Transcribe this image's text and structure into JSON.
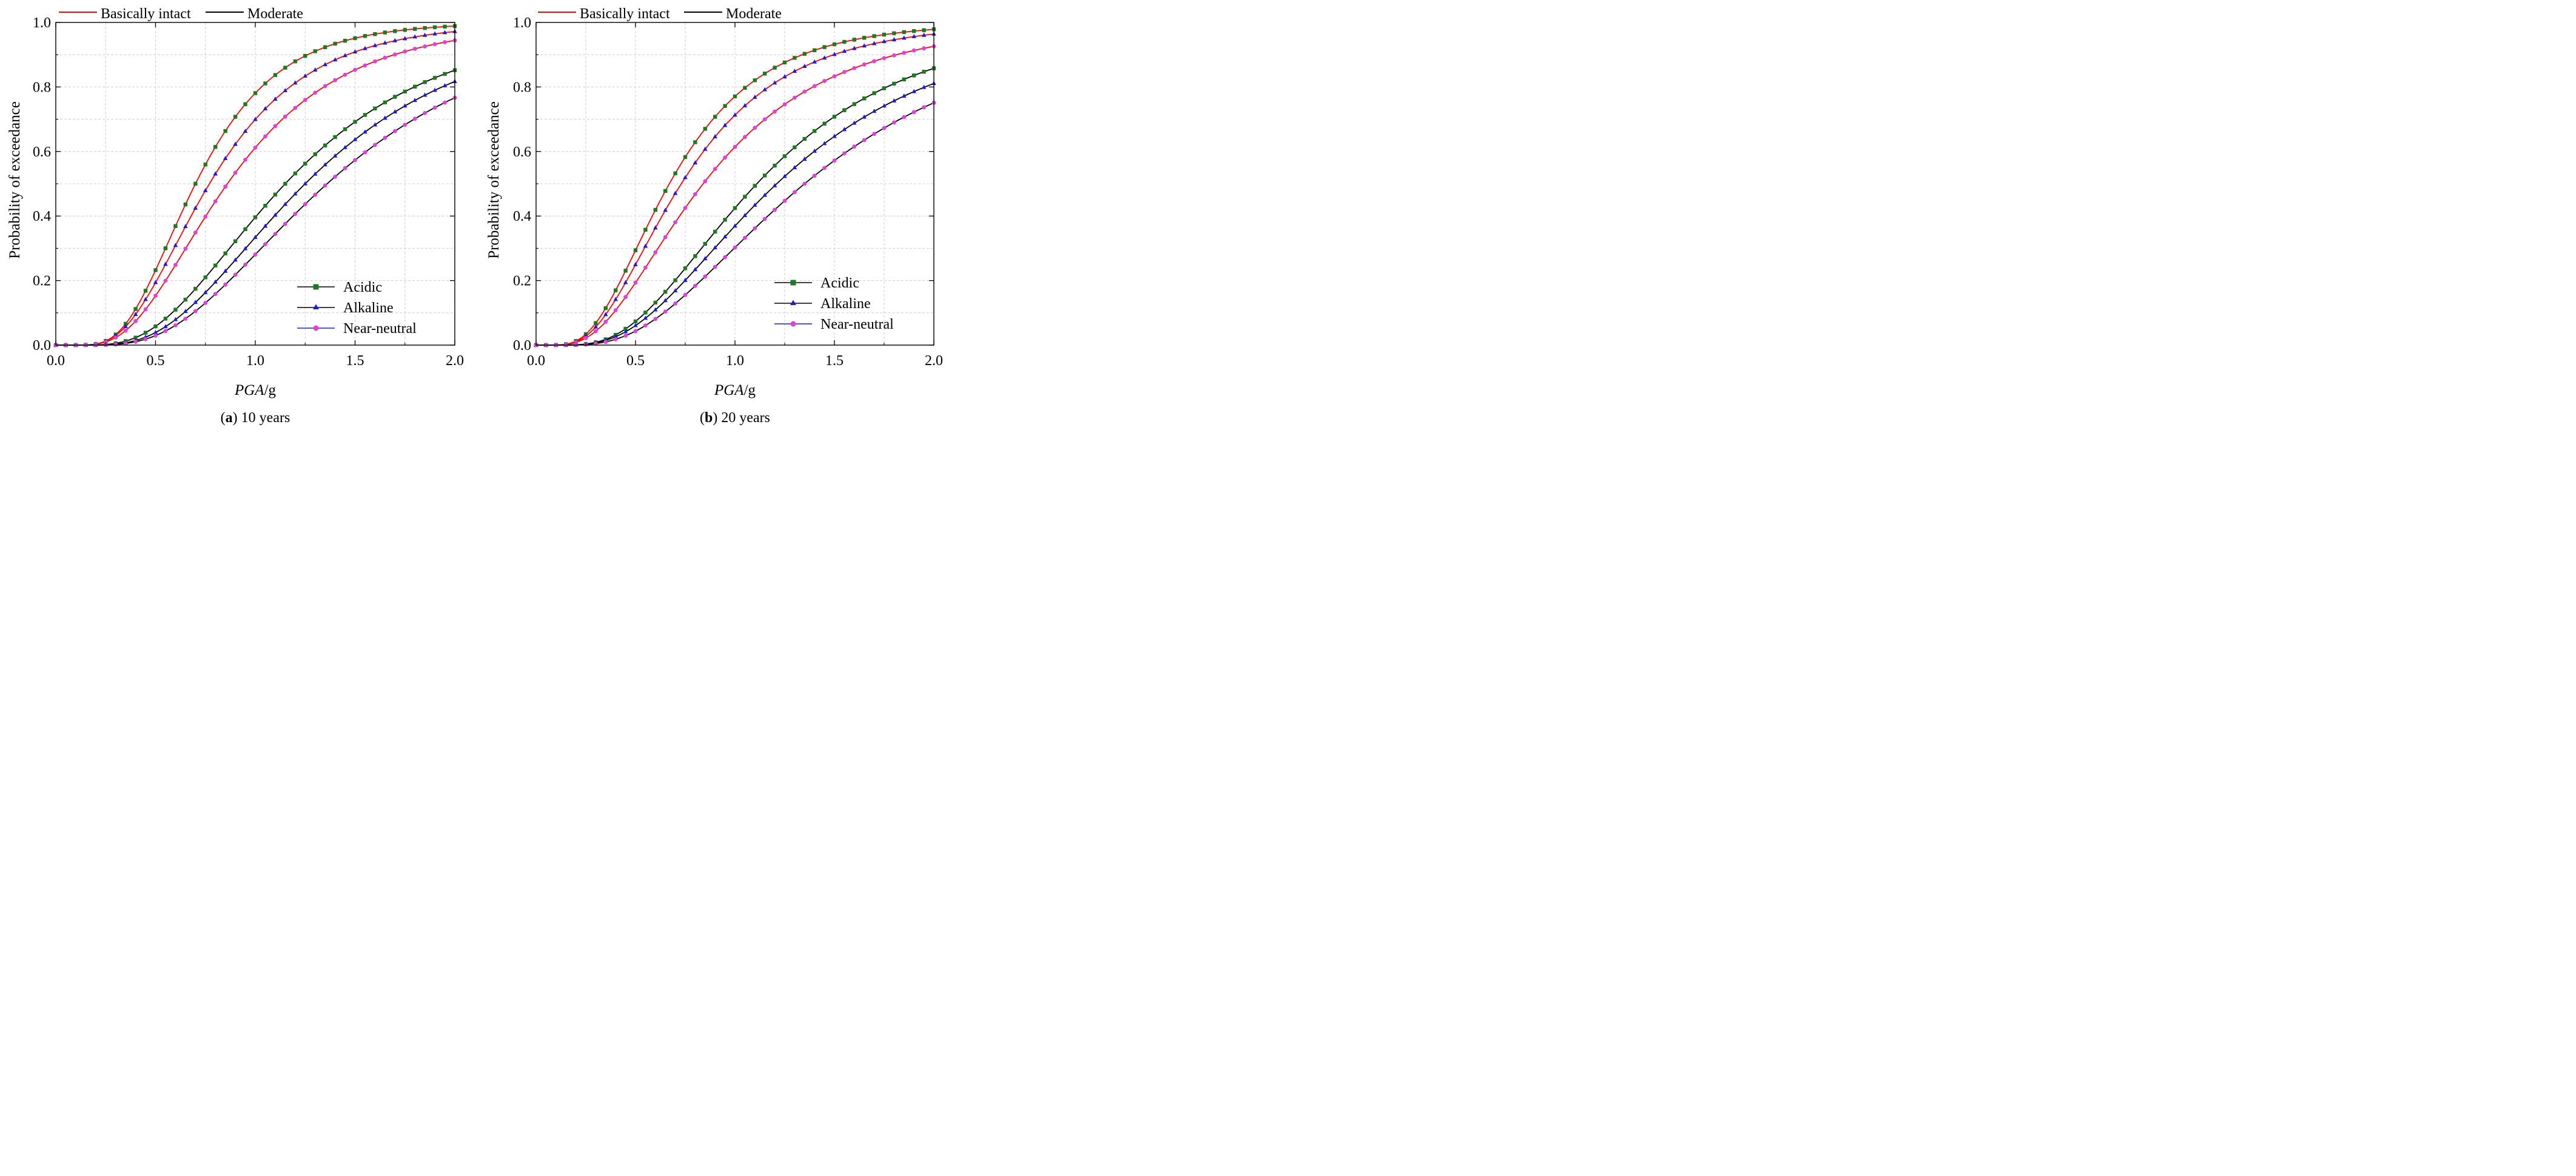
{
  "figure": {
    "panels": [
      {
        "id": "a",
        "caption_letter": "a",
        "caption_text": " 10 years",
        "ylabel": "Probability of exceedance",
        "xlabel_italic": "PGA",
        "xlabel_unit": "/g"
      },
      {
        "id": "b",
        "caption_letter": "b",
        "caption_text": " 20 years",
        "ylabel": "Probability of exceedance",
        "xlabel_italic": "PGA",
        "xlabel_unit": "/g"
      }
    ],
    "line_legend": [
      {
        "label": "Basically intact",
        "color": "#ff0000"
      },
      {
        "label": "Moderate",
        "color": "#000000"
      }
    ],
    "marker_legend": [
      {
        "label": "Acidic",
        "marker": "square",
        "color": "#1e7a1e"
      },
      {
        "label": "Alkaline",
        "marker": "triangle",
        "color": "#1c1cd6"
      },
      {
        "label": "Near-neutral",
        "marker": "circle",
        "color": "#e040e0"
      }
    ],
    "colors": {
      "basically_intact": "#ff0000",
      "moderate": "#000000",
      "acidic": "#1e7a1e",
      "alkaline": "#1c1cd6",
      "near_neutral": "#e040e0",
      "grid": "#d0d0d0"
    }
  },
  "chart_data": [
    {
      "type": "line",
      "title": "(a) 10 years",
      "xlabel": "PGA/g",
      "ylabel": "Probability of exceedance",
      "xlim": [
        0.0,
        2.0
      ],
      "ylim": [
        0.0,
        1.0
      ],
      "xticks": [
        "0.0",
        "0.5",
        "1.0",
        "1.5",
        "2.0"
      ],
      "yticks": [
        "0.0",
        "0.2",
        "0.4",
        "0.6",
        "0.8",
        "1.0"
      ],
      "grid": true,
      "series": [
        {
          "name": "Basically intact - Acidic",
          "state": "Basically intact",
          "condition": "Acidic",
          "median": 0.7,
          "beta": 0.46
        },
        {
          "name": "Basically intact - Alkaline",
          "state": "Basically intact",
          "condition": "Alkaline",
          "median": 0.77,
          "beta": 0.5
        },
        {
          "name": "Basically intact - Near-neutral",
          "state": "Basically intact",
          "condition": "Near-neutral",
          "median": 0.86,
          "beta": 0.53
        },
        {
          "name": "Moderate - Acidic",
          "state": "Moderate",
          "condition": "Acidic",
          "median": 1.15,
          "beta": 0.53
        },
        {
          "name": "Moderate - Alkaline",
          "state": "Moderate",
          "condition": "Alkaline",
          "median": 1.25,
          "beta": 0.52
        },
        {
          "name": "Moderate - Near-neutral",
          "state": "Moderate",
          "condition": "Near-neutral",
          "median": 1.36,
          "beta": 0.53
        }
      ]
    },
    {
      "type": "line",
      "title": "(b) 20 years",
      "xlabel": "PGA/g",
      "ylabel": "Probability of exceedance",
      "xlim": [
        0.0,
        2.0
      ],
      "ylim": [
        0.0,
        1.0
      ],
      "xticks": [
        "0.0",
        "0.5",
        "1.0",
        "1.5",
        "2.0"
      ],
      "yticks": [
        "0.0",
        "0.2",
        "0.4",
        "0.6",
        "0.8",
        "1.0"
      ],
      "grid": true,
      "series": [
        {
          "name": "Basically intact - Acidic",
          "state": "Basically intact",
          "condition": "Acidic",
          "median": 0.67,
          "beta": 0.54
        },
        {
          "name": "Basically intact - Alkaline",
          "state": "Basically intact",
          "condition": "Alkaline",
          "median": 0.73,
          "beta": 0.56
        },
        {
          "name": "Basically intact - Near-neutral",
          "state": "Basically intact",
          "condition": "Near-neutral",
          "median": 0.84,
          "beta": 0.6
        },
        {
          "name": "Moderate - Acidic",
          "state": "Moderate",
          "condition": "Acidic",
          "median": 1.11,
          "beta": 0.55
        },
        {
          "name": "Moderate - Alkaline",
          "state": "Moderate",
          "condition": "Alkaline",
          "median": 1.21,
          "beta": 0.57
        },
        {
          "name": "Moderate - Near-neutral",
          "state": "Moderate",
          "condition": "Near-neutral",
          "median": 1.35,
          "beta": 0.58
        }
      ]
    }
  ]
}
